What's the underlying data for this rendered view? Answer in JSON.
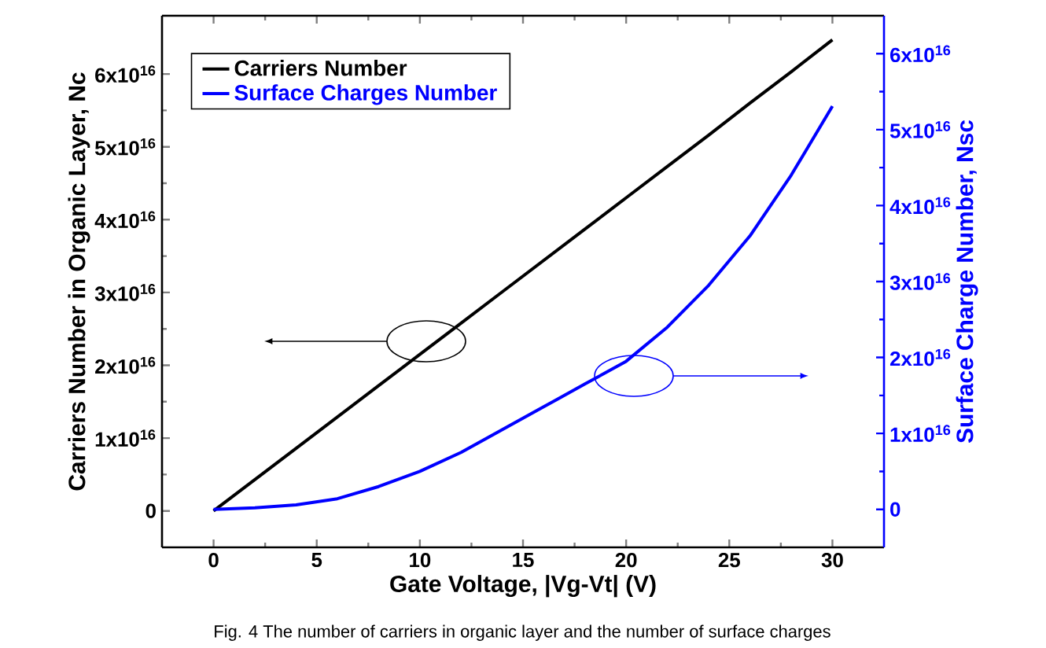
{
  "chart_data": {
    "type": "line",
    "xlabel": "Gate Voltage, |Vg-Vt| (V)",
    "ylabel": "Carriers Number in Organic Layer, Nc",
    "y2label": "Surface Charge Number, Nsc",
    "x": [
      0,
      2,
      4,
      6,
      8,
      10,
      12,
      14,
      16,
      18,
      20,
      22,
      24,
      26,
      28,
      30
    ],
    "series": [
      {
        "name": "Carriers Number",
        "color": "#000000",
        "values": [
          0,
          4300000000000000.0,
          8600000000000000.0,
          1.29e+16,
          1.72e+16,
          2.15e+16,
          2.58e+16,
          3.01e+16,
          3.44e+16,
          3.87e+16,
          4.3e+16,
          4.73e+16,
          5.16e+16,
          5.6e+16,
          6.03e+16,
          6.47e+16
        ]
      },
      {
        "name": "Surface Charges Number",
        "color": "#0000ff",
        "axis": "y2",
        "values": [
          0,
          200000000000000.0,
          600000000000000.0,
          1400000000000000.0,
          3000000000000000.0,
          5000000000000000.0,
          7500000000000000.0,
          1.05e+16,
          1.35e+16,
          1.65e+16,
          1.95e+16,
          2.4e+16,
          2.95e+16,
          3.6e+16,
          4.4e+16,
          5.31e+16
        ]
      }
    ],
    "xlim": [
      -2.5,
      32.5
    ],
    "xticks": [
      0,
      5,
      10,
      15,
      20,
      25,
      30
    ],
    "ylim": [
      -5000000000000000.0,
      6.8e+16
    ],
    "yticks": [
      0,
      {
        "value": 1e+16,
        "label": "1x10$^{16}$"
      },
      {
        "value": 2e+16,
        "label": "2x10$^{16}$"
      },
      {
        "value": 3e+16,
        "label": "3x10$^{16}$"
      },
      {
        "value": 4e+16,
        "label": "4x10$^{16}$"
      },
      {
        "value": 5e+16,
        "label": "5x10$^{16}$"
      },
      {
        "value": 6e+16,
        "label": "6x10$^{16}$"
      }
    ],
    "y2lim": [
      -5000000000000000.0,
      6.5e+16
    ],
    "y2ticks": [
      0,
      {
        "value": 1e+16,
        "label": "1x10$^{16}$"
      },
      {
        "value": 2e+16,
        "label": "2x10$^{16}$"
      },
      {
        "value": 3e+16,
        "label": "3x10$^{16}$"
      },
      {
        "value": 4e+16,
        "label": "4x10$^{16}$"
      },
      {
        "value": 5e+16,
        "label": "5x10$^{16}$"
      },
      {
        "value": 6e+16,
        "label": "6x10$^{16}$"
      }
    ],
    "legend": "top left",
    "marker": "none",
    "line_style": "solid",
    "grid": false,
    "annotations": [
      "Fig. 4 The number of carriers in organic layer and the number of surface charges"
    ]
  }
}
